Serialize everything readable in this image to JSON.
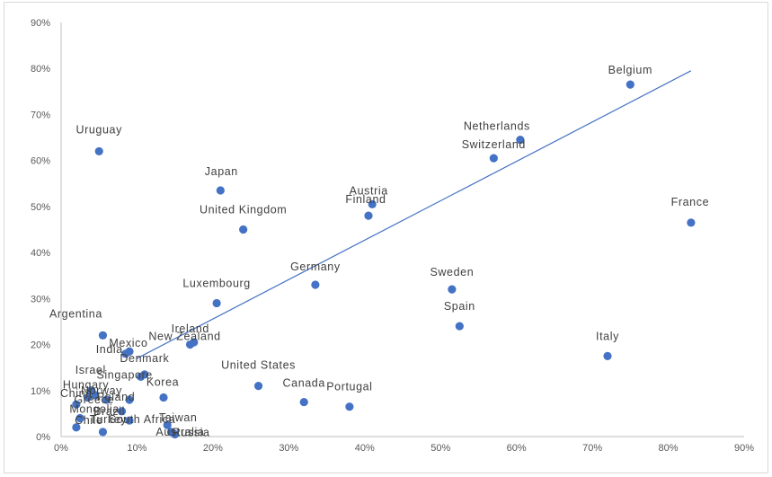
{
  "chart_data": {
    "type": "scatter",
    "title": "",
    "xlabel": "",
    "ylabel": "",
    "xlim": [
      0,
      90
    ],
    "ylim": [
      0,
      90
    ],
    "x_ticks": [
      "0%",
      "10%",
      "20%",
      "30%",
      "40%",
      "50%",
      "60%",
      "70%",
      "80%",
      "90%"
    ],
    "y_ticks": [
      "0%",
      "10%",
      "20%",
      "30%",
      "40%",
      "50%",
      "60%",
      "70%",
      "80%",
      "90%"
    ],
    "point_color": "#4472c4",
    "trendline": {
      "from": [
        10,
        17
      ],
      "to": [
        83,
        79.5
      ],
      "color": "#4472c4"
    },
    "grid": false,
    "legend": "none",
    "points": [
      {
        "label": "Belgium",
        "x": 75,
        "y": 76.5
      },
      {
        "label": "Netherlands",
        "x": 60.5,
        "y": 64.5
      },
      {
        "label": "Switzerland",
        "x": 57,
        "y": 60.5
      },
      {
        "label": "Uruguay",
        "x": 5,
        "y": 62
      },
      {
        "label": "Japan",
        "x": 21,
        "y": 53.5
      },
      {
        "label": "Austria",
        "x": 41,
        "y": 50.5
      },
      {
        "label": "Finland",
        "x": 40.5,
        "y": 48
      },
      {
        "label": "France",
        "x": 83,
        "y": 46.5
      },
      {
        "label": "United Kingdom",
        "x": 24,
        "y": 45
      },
      {
        "label": "Germany",
        "x": 33.5,
        "y": 33
      },
      {
        "label": "Sweden",
        "x": 51.5,
        "y": 32
      },
      {
        "label": "Luxembourg",
        "x": 20.5,
        "y": 29
      },
      {
        "label": "Spain",
        "x": 52.5,
        "y": 24
      },
      {
        "label": "Argentina",
        "x": 5.5,
        "y": 22
      },
      {
        "label": "Ireland",
        "x": 17.5,
        "y": 20.5
      },
      {
        "label": "New Zealand",
        "x": 17,
        "y": 20
      },
      {
        "label": "Mexico",
        "x": 9,
        "y": 18.5
      },
      {
        "label": "India",
        "x": 8.5,
        "y": 18
      },
      {
        "label": "Italy",
        "x": 72,
        "y": 17.5
      },
      {
        "label": "Denmark",
        "x": 11,
        "y": 13.5
      },
      {
        "label": "Singapore",
        "x": 10.5,
        "y": 13
      },
      {
        "label": "United States",
        "x": 26,
        "y": 11
      },
      {
        "label": "Israel",
        "x": 4,
        "y": 10
      },
      {
        "label": "Norway",
        "x": 4.5,
        "y": 9
      },
      {
        "label": "Korea",
        "x": 13.5,
        "y": 8.5
      },
      {
        "label": "Hungary",
        "x": 3.5,
        "y": 8.5
      },
      {
        "label": "Poland",
        "x": 9,
        "y": 8
      },
      {
        "label": "Greece",
        "x": 6,
        "y": 8
      },
      {
        "label": "Canada",
        "x": 32,
        "y": 7.5
      },
      {
        "label": "China",
        "x": 2,
        "y": 7
      },
      {
        "label": "Portugal",
        "x": 38,
        "y": 6.5
      },
      {
        "label": "Brazil",
        "x": 8,
        "y": 5.5
      },
      {
        "label": "Mongolia",
        "x": 2.5,
        "y": 4
      },
      {
        "label": "South Africa",
        "x": 9,
        "y": 3.5
      },
      {
        "label": "Taiwan",
        "x": 14,
        "y": 2.5
      },
      {
        "label": "Chile",
        "x": 2,
        "y": 2
      },
      {
        "label": "Australia",
        "x": 14.5,
        "y": 1
      },
      {
        "label": "Turkey",
        "x": 5.5,
        "y": 1
      },
      {
        "label": "Russia",
        "x": 15,
        "y": 0.5
      }
    ]
  }
}
